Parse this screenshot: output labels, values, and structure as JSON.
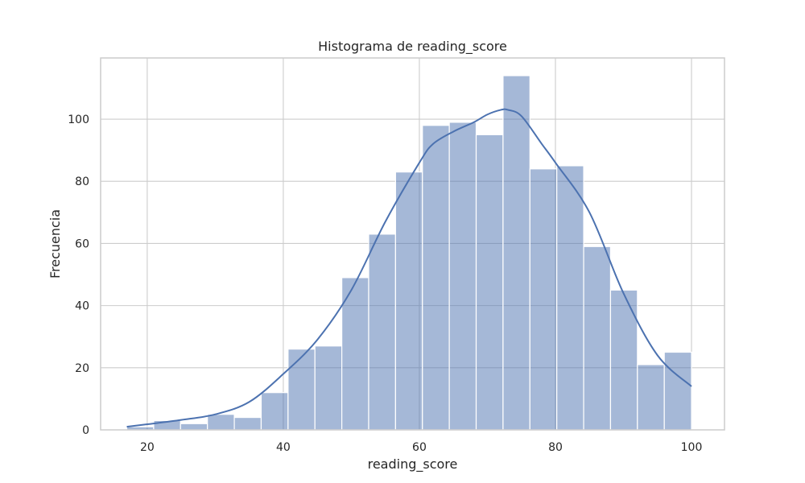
{
  "chart_data": {
    "type": "histogram",
    "title": "Histograma de reading_score",
    "xlabel": "reading_score",
    "ylabel": "Frecuencia",
    "xlim": [
      13.15,
      104.85
    ],
    "ylim": [
      0,
      119.7
    ],
    "x_ticks": [
      20,
      40,
      60,
      80,
      100
    ],
    "y_ticks": [
      0,
      20,
      40,
      60,
      80,
      100
    ],
    "grid": true,
    "bar_color": "#4c72b0",
    "bins": [
      {
        "x0": 17.0,
        "x1": 20.95,
        "count": 1
      },
      {
        "x0": 20.95,
        "x1": 24.9,
        "count": 3
      },
      {
        "x0": 24.9,
        "x1": 28.85,
        "count": 2
      },
      {
        "x0": 28.85,
        "x1": 32.8,
        "count": 5
      },
      {
        "x0": 32.8,
        "x1": 36.75,
        "count": 4
      },
      {
        "x0": 36.75,
        "x1": 40.7,
        "count": 12
      },
      {
        "x0": 40.7,
        "x1": 44.65,
        "count": 26
      },
      {
        "x0": 44.65,
        "x1": 48.6,
        "count": 27
      },
      {
        "x0": 48.6,
        "x1": 52.55,
        "count": 49
      },
      {
        "x0": 52.55,
        "x1": 56.5,
        "count": 63
      },
      {
        "x0": 56.5,
        "x1": 60.45,
        "count": 83
      },
      {
        "x0": 60.45,
        "x1": 64.4,
        "count": 98
      },
      {
        "x0": 64.4,
        "x1": 68.35,
        "count": 99
      },
      {
        "x0": 68.35,
        "x1": 72.3,
        "count": 95
      },
      {
        "x0": 72.3,
        "x1": 76.25,
        "count": 114
      },
      {
        "x0": 76.25,
        "x1": 80.2,
        "count": 84
      },
      {
        "x0": 80.2,
        "x1": 84.15,
        "count": 85
      },
      {
        "x0": 84.15,
        "x1": 88.1,
        "count": 59
      },
      {
        "x0": 88.1,
        "x1": 92.05,
        "count": 45
      },
      {
        "x0": 92.05,
        "x1": 96.0,
        "count": 21
      },
      {
        "x0": 96.0,
        "x1": 100.0,
        "count": 25
      }
    ],
    "kde": {
      "x": [
        17,
        20,
        25,
        30,
        35,
        40,
        45,
        50,
        55,
        60,
        62,
        65,
        68,
        70,
        72,
        73,
        75,
        78,
        80,
        85,
        90,
        95,
        100
      ],
      "y": [
        1,
        1.8,
        3.2,
        5,
        9,
        18,
        29,
        45,
        67,
        86,
        92,
        96,
        99,
        101.5,
        103,
        103,
        101,
        92,
        86,
        70,
        44,
        24,
        14
      ]
    }
  }
}
